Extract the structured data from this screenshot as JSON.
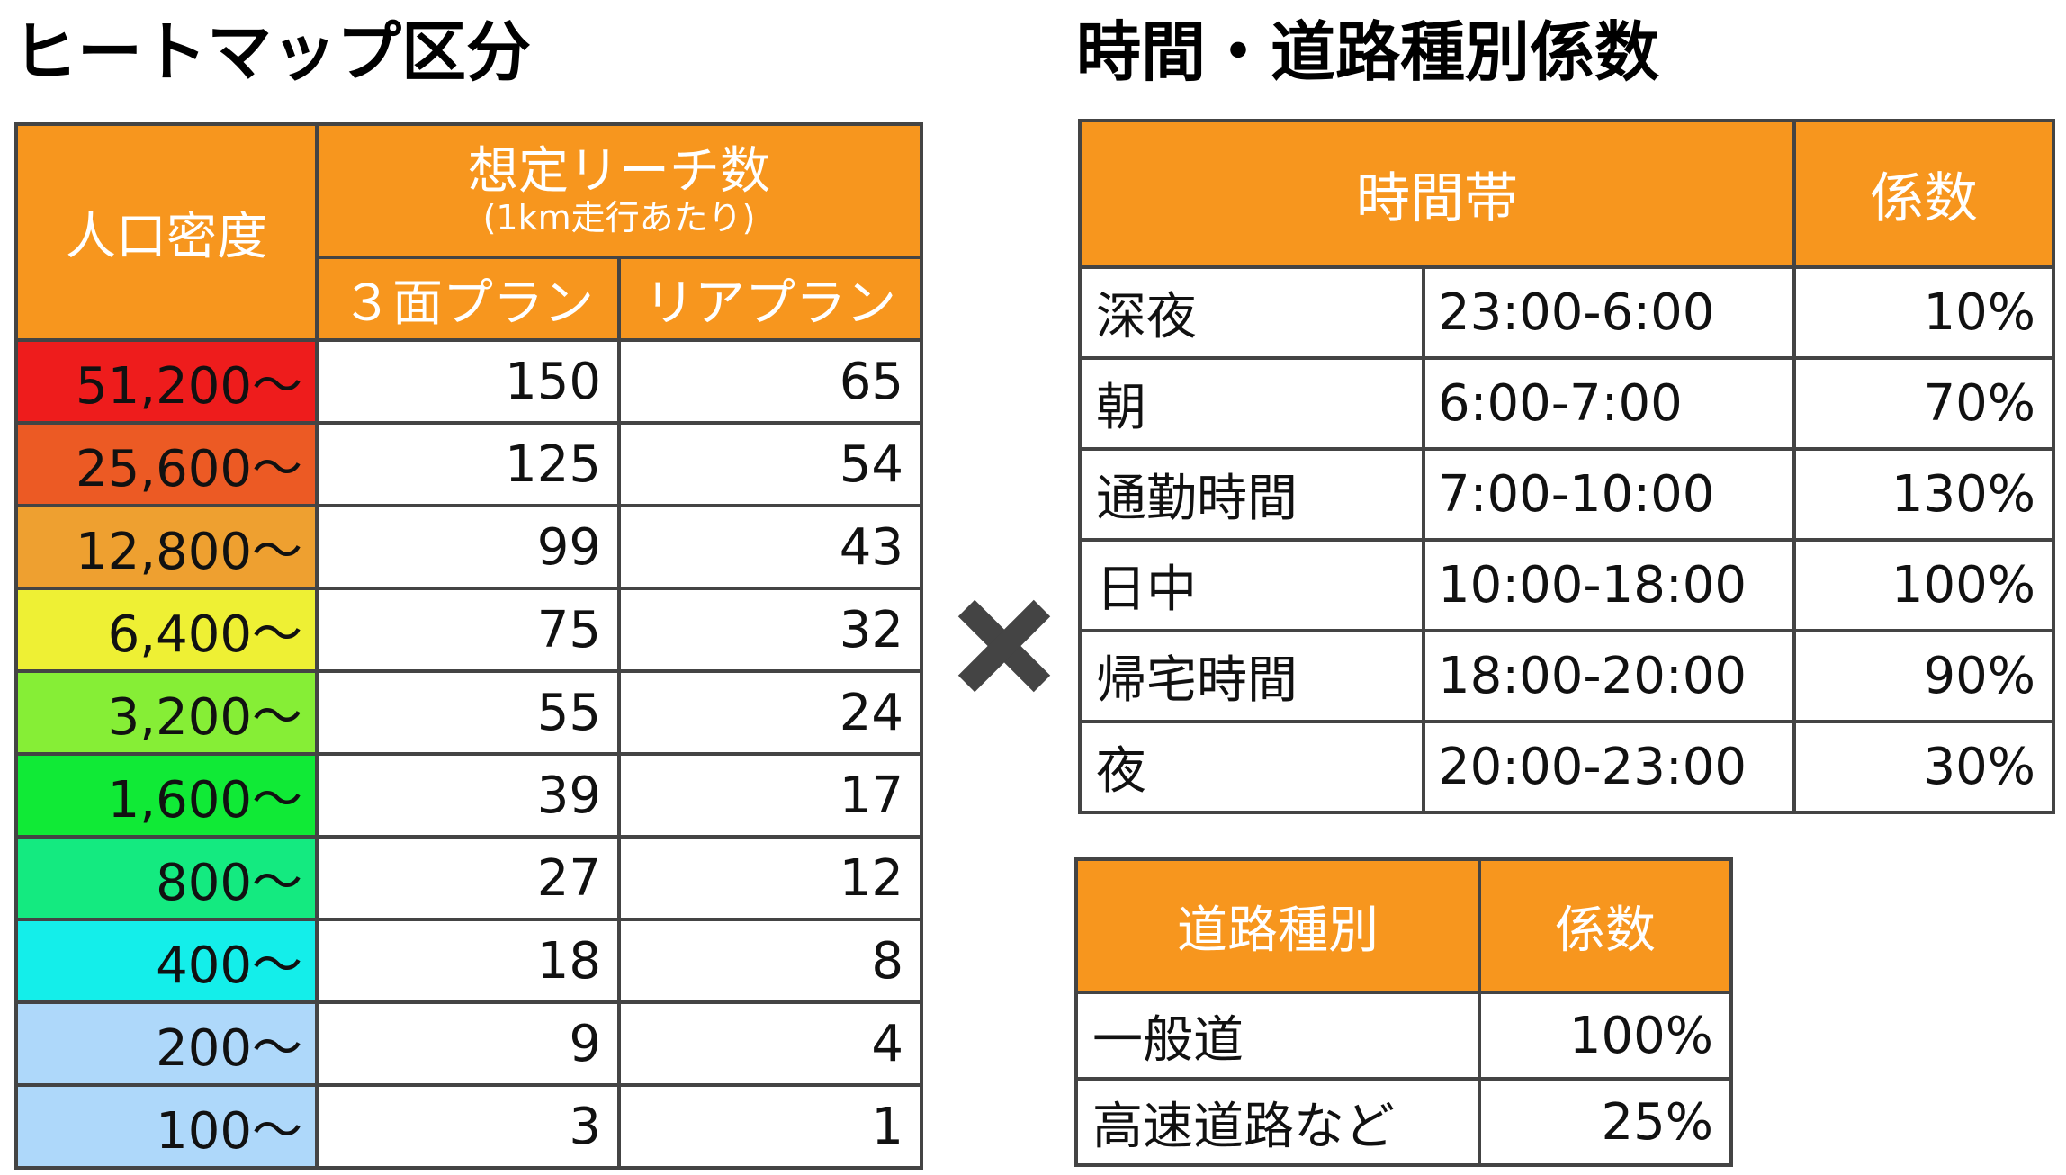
{
  "left_title": "ヒートマップ区分",
  "right_title": "時間・道路種別係数",
  "heatmap": {
    "header_density": "人口密度",
    "header_reach": "想定リーチ数",
    "header_reach_sub": "(1km走行あたり)",
    "header_plan3": "３面プラン",
    "header_rear": "リアプラン",
    "rows": [
      {
        "density": "51,200〜",
        "plan3": "150",
        "rear": "65",
        "color": "#ee1c1c"
      },
      {
        "density": "25,600〜",
        "plan3": "125",
        "rear": "54",
        "color": "#ec5a24"
      },
      {
        "density": "12,800〜",
        "plan3": "99",
        "rear": "43",
        "color": "#eea030"
      },
      {
        "density": "6,400〜",
        "plan3": "75",
        "rear": "32",
        "color": "#eef034"
      },
      {
        "density": "3,200〜",
        "plan3": "55",
        "rear": "24",
        "color": "#86ee36"
      },
      {
        "density": "1,600〜",
        "plan3": "39",
        "rear": "17",
        "color": "#10ea36"
      },
      {
        "density": "800〜",
        "plan3": "27",
        "rear": "12",
        "color": "#14ea80"
      },
      {
        "density": "400〜",
        "plan3": "18",
        "rear": "8",
        "color": "#14eeea"
      },
      {
        "density": "200〜",
        "plan3": "9",
        "rear": "4",
        "color": "#aed8fa"
      },
      {
        "density": "100〜",
        "plan3": "3",
        "rear": "1",
        "color": "#aed8fa"
      }
    ]
  },
  "multiply_icon": "times-icon",
  "time_table": {
    "header_time": "時間帯",
    "header_coef": "係数",
    "rows": [
      {
        "name": "深夜",
        "range": "23:00-6:00",
        "coef": "10%"
      },
      {
        "name": "朝",
        "range": "6:00-7:00",
        "coef": "70%"
      },
      {
        "name": "通勤時間",
        "range": "7:00-10:00",
        "coef": "130%"
      },
      {
        "name": "日中",
        "range": "10:00-18:00",
        "coef": "100%"
      },
      {
        "name": "帰宅時間",
        "range": "18:00-20:00",
        "coef": "90%"
      },
      {
        "name": "夜",
        "range": "20:00-23:00",
        "coef": "30%"
      }
    ]
  },
  "road_table": {
    "header_road": "道路種別",
    "header_coef": "係数",
    "rows": [
      {
        "name": "一般道",
        "coef": "100%"
      },
      {
        "name": "高速道路など",
        "coef": "25%"
      }
    ]
  }
}
